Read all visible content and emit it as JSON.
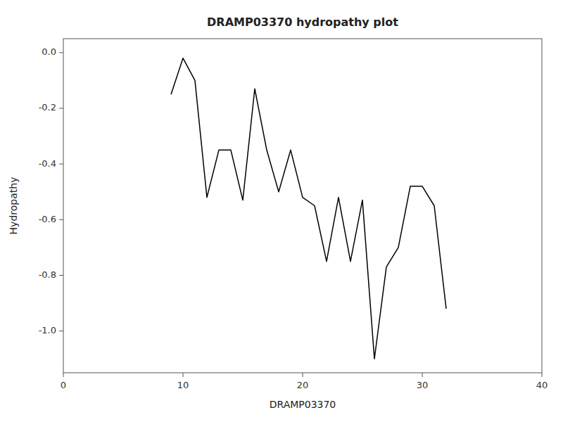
{
  "chart_data": {
    "type": "line",
    "title": "DRAMP03370 hydropathy plot",
    "xlabel": "DRAMP03370",
    "ylabel": "Hydropathy",
    "x": [
      9,
      10,
      11,
      12,
      13,
      14,
      15,
      16,
      17,
      18,
      19,
      20,
      21,
      22,
      23,
      24,
      25,
      26,
      27,
      28,
      29,
      30,
      31,
      32
    ],
    "values": [
      -0.15,
      -0.02,
      -0.1,
      -0.52,
      -0.35,
      -0.35,
      -0.53,
      -0.13,
      -0.35,
      -0.5,
      -0.35,
      -0.52,
      -0.55,
      -0.75,
      -0.52,
      -0.75,
      -0.53,
      -1.1,
      -0.77,
      -0.7,
      -0.48,
      -0.48,
      -0.55,
      -0.92
    ],
    "color": "#000000",
    "xlim": [
      0,
      40
    ],
    "ylim": [
      -1.15,
      0.05
    ],
    "xticks": [
      0,
      10,
      20,
      30,
      40
    ],
    "yticks": [
      {
        "value": 0.0,
        "label": "0.0"
      },
      -0.2,
      -0.4,
      -0.6,
      -0.8,
      {
        "value": -1.0,
        "label": "-1.0"
      }
    ],
    "grid": false
  }
}
